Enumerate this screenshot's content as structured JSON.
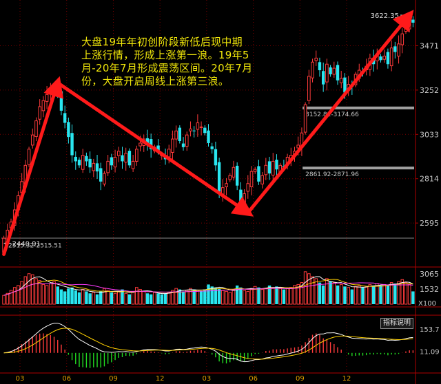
{
  "annotation": {
    "lines": [
      "大盘19年年初创阶段新低后现中期",
      "上涨行情，形成上涨第一浪。19年5",
      "月-20年7月形成震荡区间。20年7月",
      "份，大盘开启周线上涨第三浪。"
    ]
  },
  "chart_data": {
    "type": "candlestick",
    "timeframe": "weekly",
    "x_tick_labels": [
      "03",
      "06",
      "09",
      "12",
      "03",
      "06",
      "09",
      "12"
    ],
    "price_axis": {
      "ticks": [
        3471,
        3252,
        3033,
        2814,
        2595
      ],
      "range": [
        2405,
        3680
      ]
    },
    "price_labels": {
      "high": "3622.35",
      "low": "2440.91",
      "level_1": "3152.81-3174.66",
      "level_2": "2861.92-2871.96",
      "level_3": "2515.32-2515.51"
    },
    "levels": [
      {
        "low": 3152.81,
        "high": 3174.66
      },
      {
        "low": 2861.92,
        "high": 2871.96
      },
      {
        "low": 2515.32,
        "high": 2515.51
      }
    ],
    "extremes": {
      "high": 3622.35,
      "low": 2440.91
    },
    "wave_points": [
      {
        "week": 0,
        "price": 2440.91
      },
      {
        "week": 15,
        "price": 3288
      },
      {
        "week": 68,
        "price": 2646
      },
      {
        "week": 113,
        "price": 3622.35
      }
    ],
    "closes": [
      2520,
      2560,
      2600,
      2660,
      2730,
      2800,
      2880,
      2960,
      3030,
      3100,
      3170,
      3200,
      3230,
      3260,
      3270,
      3230,
      3150,
      3090,
      3020,
      2930,
      2900,
      2880,
      2930,
      2900,
      2870,
      2890,
      2850,
      2800,
      2840,
      2900,
      2880,
      2920,
      2950,
      2900,
      2940,
      2880,
      2900,
      2960,
      2990,
      3010,
      2990,
      2960,
      2970,
      2950,
      2930,
      2910,
      2960,
      3010,
      3050,
      3000,
      2970,
      3030,
      3060,
      3050,
      3090,
      3070,
      3040,
      2990,
      2960,
      2880,
      2750,
      2770,
      2790,
      2830,
      2870,
      2780,
      2700,
      2740,
      2790,
      2850,
      2860,
      2800,
      2830,
      2880,
      2840,
      2900,
      2860,
      2880,
      2870,
      2920,
      2930,
      2950,
      2980,
      3040,
      3180,
      3320,
      3390,
      3410,
      3350,
      3280,
      3380,
      3330,
      3360,
      3300,
      3310,
      3240,
      3280,
      3270,
      3330,
      3350,
      3340,
      3370,
      3410,
      3380,
      3430,
      3400,
      3420,
      3380,
      3460,
      3440,
      3480,
      3530,
      3570,
      3600,
      3585
    ],
    "volume": {
      "labels": [
        "3065",
        "1532",
        "X100"
      ],
      "range": [
        0,
        3500
      ],
      "values": [
        900,
        1100,
        1400,
        1700,
        1900,
        2300,
        2800,
        3100,
        3000,
        2600,
        2400,
        2000,
        1900,
        2100,
        2300,
        1800,
        1500,
        1300,
        1600,
        1700,
        1400,
        1200,
        1500,
        1300,
        1100,
        1200,
        1000,
        1300,
        1600,
        1400,
        1200,
        1100,
        1300,
        1500,
        1100,
        1000,
        1200,
        1700,
        1500,
        1300,
        1100,
        1000,
        1200,
        1100,
        1000,
        1100,
        1200,
        1400,
        1600,
        1500,
        1300,
        1400,
        1600,
        1500,
        1400,
        1300,
        1500,
        2000,
        1800,
        1700,
        1600,
        1400,
        1300,
        1200,
        1500,
        1900,
        1700,
        1400,
        1300,
        1600,
        1800,
        1700,
        1500,
        1600,
        1900,
        1700,
        1800,
        1600,
        1500,
        1600,
        1700,
        1900,
        2000,
        2200,
        3300,
        3100,
        2800,
        2600,
        2200,
        1900,
        2600,
        2300,
        2200,
        1900,
        2000,
        1800,
        1700,
        1500,
        1800,
        1900,
        1700,
        1800,
        2000,
        1900,
        2100,
        1900,
        2000,
        1900,
        2200,
        2100,
        2300,
        2500,
        2200,
        2000,
        1300
      ]
    },
    "macd": {
      "button_label": "指标说明",
      "labels": [
        "153.7",
        "11.09"
      ],
      "range": [
        -120,
        180
      ]
    }
  }
}
